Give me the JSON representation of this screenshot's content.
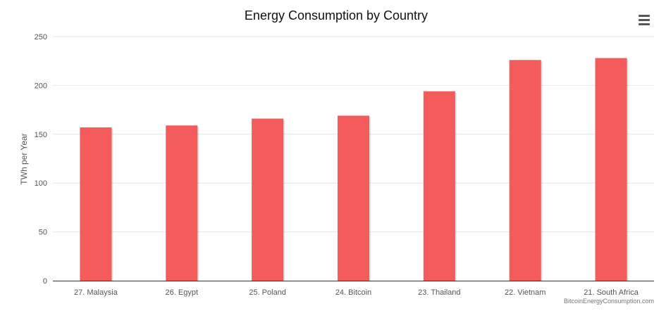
{
  "chart_data": {
    "type": "bar",
    "title": "Energy Consumption by Country",
    "xlabel": "",
    "ylabel": "TWh per Year",
    "categories": [
      "27. Malaysia",
      "26. Egypt",
      "25. Poland",
      "24. Bitcoin",
      "23. Thailand",
      "22. Vietnam",
      "21. South Africa"
    ],
    "values": [
      157,
      159,
      166,
      169,
      194,
      226,
      228
    ],
    "ylim": [
      0,
      250
    ],
    "yticks": [
      0,
      50,
      100,
      150,
      200,
      250
    ],
    "grid": true,
    "bar_color": "#f45b5b",
    "credit": "BitcoinEnergyConsumption.com"
  },
  "menu": {
    "icon": "hamburger-icon"
  }
}
